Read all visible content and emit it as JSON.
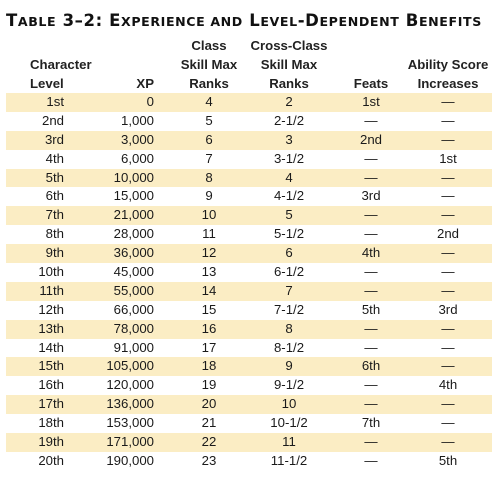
{
  "title": {
    "prefix": "T",
    "word1": "ABLE",
    "number": " 3–2: E",
    "word2": "XPERIENCE AND",
    "l": " L",
    "word3": "EVEL",
    "dash_d": "-D",
    "word4": "EPENDENT",
    "b": " B",
    "word5": "ENEFITS"
  },
  "headers": {
    "level_line1": "Character",
    "level_line2": "Level",
    "xp": "XP",
    "class_line1": "Class",
    "class_line2": "Skill Max",
    "class_line3": "Ranks",
    "cross_line1": "Cross-Class",
    "cross_line2": "Skill Max",
    "cross_line3": "Ranks",
    "feats": "Feats",
    "ability_line1": "Ability Score",
    "ability_line2": "Increases"
  },
  "rows": [
    {
      "level": "1st",
      "xp": "0",
      "class_ranks": "4",
      "cross_ranks": "2",
      "feats": "1st",
      "ability": "—"
    },
    {
      "level": "2nd",
      "xp": "1,000",
      "class_ranks": "5",
      "cross_ranks": "2-1/2",
      "feats": "—",
      "ability": "—"
    },
    {
      "level": "3rd",
      "xp": "3,000",
      "class_ranks": "6",
      "cross_ranks": "3",
      "feats": "2nd",
      "ability": "—"
    },
    {
      "level": "4th",
      "xp": "6,000",
      "class_ranks": "7",
      "cross_ranks": "3-1/2",
      "feats": "—",
      "ability": "1st"
    },
    {
      "level": "5th",
      "xp": "10,000",
      "class_ranks": "8",
      "cross_ranks": "4",
      "feats": "—",
      "ability": "—"
    },
    {
      "level": "6th",
      "xp": "15,000",
      "class_ranks": "9",
      "cross_ranks": "4-1/2",
      "feats": "3rd",
      "ability": "—"
    },
    {
      "level": "7th",
      "xp": "21,000",
      "class_ranks": "10",
      "cross_ranks": "5",
      "feats": "—",
      "ability": "—"
    },
    {
      "level": "8th",
      "xp": "28,000",
      "class_ranks": "11",
      "cross_ranks": "5-1/2",
      "feats": "—",
      "ability": "2nd"
    },
    {
      "level": "9th",
      "xp": "36,000",
      "class_ranks": "12",
      "cross_ranks": "6",
      "feats": "4th",
      "ability": "—"
    },
    {
      "level": "10th",
      "xp": "45,000",
      "class_ranks": "13",
      "cross_ranks": "6-1/2",
      "feats": "—",
      "ability": "—"
    },
    {
      "level": "11th",
      "xp": "55,000",
      "class_ranks": "14",
      "cross_ranks": "7",
      "feats": "—",
      "ability": "—"
    },
    {
      "level": "12th",
      "xp": "66,000",
      "class_ranks": "15",
      "cross_ranks": "7-1/2",
      "feats": "5th",
      "ability": "3rd"
    },
    {
      "level": "13th",
      "xp": "78,000",
      "class_ranks": "16",
      "cross_ranks": "8",
      "feats": "—",
      "ability": "—"
    },
    {
      "level": "14th",
      "xp": "91,000",
      "class_ranks": "17",
      "cross_ranks": "8-1/2",
      "feats": "—",
      "ability": "—"
    },
    {
      "level": "15th",
      "xp": "105,000",
      "class_ranks": "18",
      "cross_ranks": "9",
      "feats": "6th",
      "ability": "—"
    },
    {
      "level": "16th",
      "xp": "120,000",
      "class_ranks": "19",
      "cross_ranks": "9-1/2",
      "feats": "—",
      "ability": "4th"
    },
    {
      "level": "17th",
      "xp": "136,000",
      "class_ranks": "20",
      "cross_ranks": "10",
      "feats": "—",
      "ability": "—"
    },
    {
      "level": "18th",
      "xp": "153,000",
      "class_ranks": "21",
      "cross_ranks": "10-1/2",
      "feats": "7th",
      "ability": "—"
    },
    {
      "level": "19th",
      "xp": "171,000",
      "class_ranks": "22",
      "cross_ranks": "11",
      "feats": "—",
      "ability": "—"
    },
    {
      "level": "20th",
      "xp": "190,000",
      "class_ranks": "23",
      "cross_ranks": "11-1/2",
      "feats": "—",
      "ability": "5th"
    }
  ],
  "colors": {
    "row_stripe": "#fbedc4",
    "text": "#1a1a1a"
  }
}
